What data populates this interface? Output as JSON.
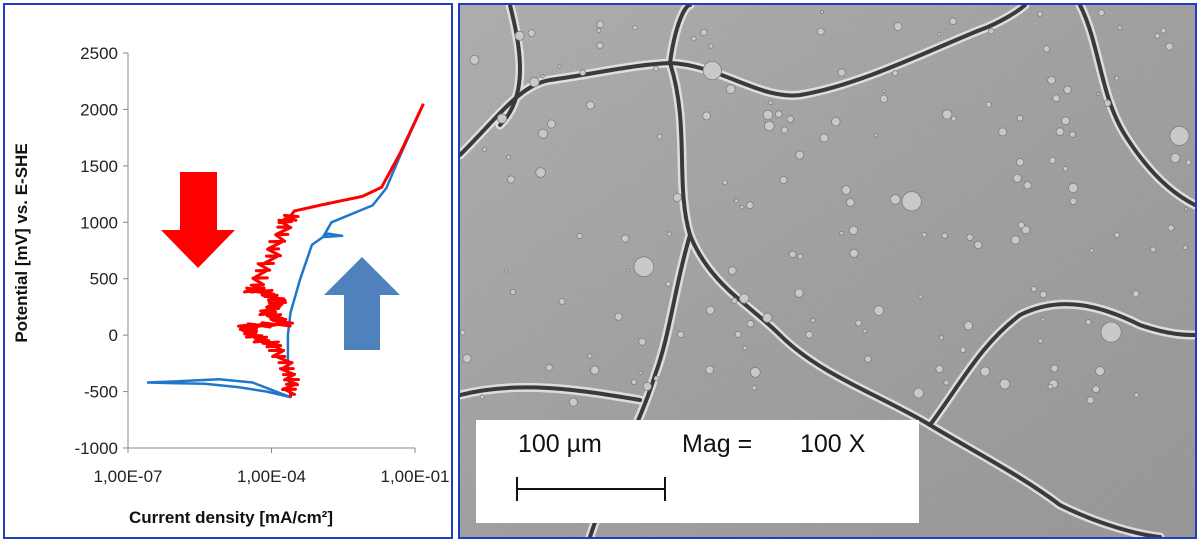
{
  "chart_data": {
    "type": "line",
    "xlabel": "Current density [mA/cm²]",
    "ylabel": "Potential [mV] vs. E-SHE",
    "x_scale": "log",
    "xlim": [
      1e-07,
      0.1
    ],
    "ylim": [
      -1000,
      2500
    ],
    "x_ticks": [
      "1,00E-07",
      "1,00E-04",
      "1,00E-01"
    ],
    "y_ticks": [
      "2500",
      "2000",
      "1500",
      "1000",
      "500",
      "0",
      "-500",
      "-1000"
    ],
    "grid": false,
    "series": [
      {
        "color": "#1f77c9",
        "points": [
          [
            2.5e-07,
            -420
          ],
          [
            1e-06,
            -410
          ],
          [
            8e-06,
            -390
          ],
          [
            4e-05,
            -420
          ],
          [
            0.00025,
            -550
          ],
          [
            8e-05,
            -500
          ],
          [
            2e-05,
            -460
          ],
          [
            4e-06,
            -430
          ],
          [
            8e-07,
            -425
          ],
          [
            2.5e-07,
            -420
          ]
        ]
      },
      {
        "color": "#1f77c9",
        "points": [
          [
            0.00025,
            -550
          ],
          [
            0.00022,
            -300
          ],
          [
            0.00022,
            0
          ],
          [
            0.00025,
            200
          ],
          [
            0.0004,
            500
          ],
          [
            0.0007,
            800
          ],
          [
            0.0015,
            900
          ],
          [
            0.003,
            880
          ],
          [
            0.0012,
            870
          ],
          [
            0.0018,
            1000
          ],
          [
            0.013,
            1150
          ],
          [
            0.025,
            1300
          ],
          [
            0.05,
            1600
          ],
          [
            0.15,
            2050
          ]
        ]
      },
      {
        "color": "#ff0000",
        "points": [
          [
            0.15,
            2050
          ],
          [
            0.05,
            1620
          ],
          [
            0.02,
            1310
          ],
          [
            0.008,
            1230
          ],
          [
            0.001,
            1150
          ],
          [
            0.0003,
            1100
          ],
          [
            0.0002,
            1000
          ],
          [
            0.0001,
            700
          ],
          [
            4e-05,
            400
          ],
          [
            6e-05,
            400
          ],
          [
            0.00015,
            300
          ],
          [
            8e-05,
            200
          ],
          [
            0.0002,
            100
          ],
          [
            3e-05,
            80
          ],
          [
            4e-05,
            0
          ],
          [
            0.00012,
            -100
          ],
          [
            0.00025,
            -350
          ],
          [
            0.00025,
            -550
          ]
        ]
      }
    ],
    "annotations": [
      {
        "shape": "arrow-down",
        "color": "#ff0000"
      },
      {
        "shape": "arrow-up",
        "color": "#4f81bd"
      }
    ]
  },
  "micrograph": {
    "scale_label": "100 µm",
    "mag_label": "Mag =",
    "mag_value": "100 X"
  }
}
